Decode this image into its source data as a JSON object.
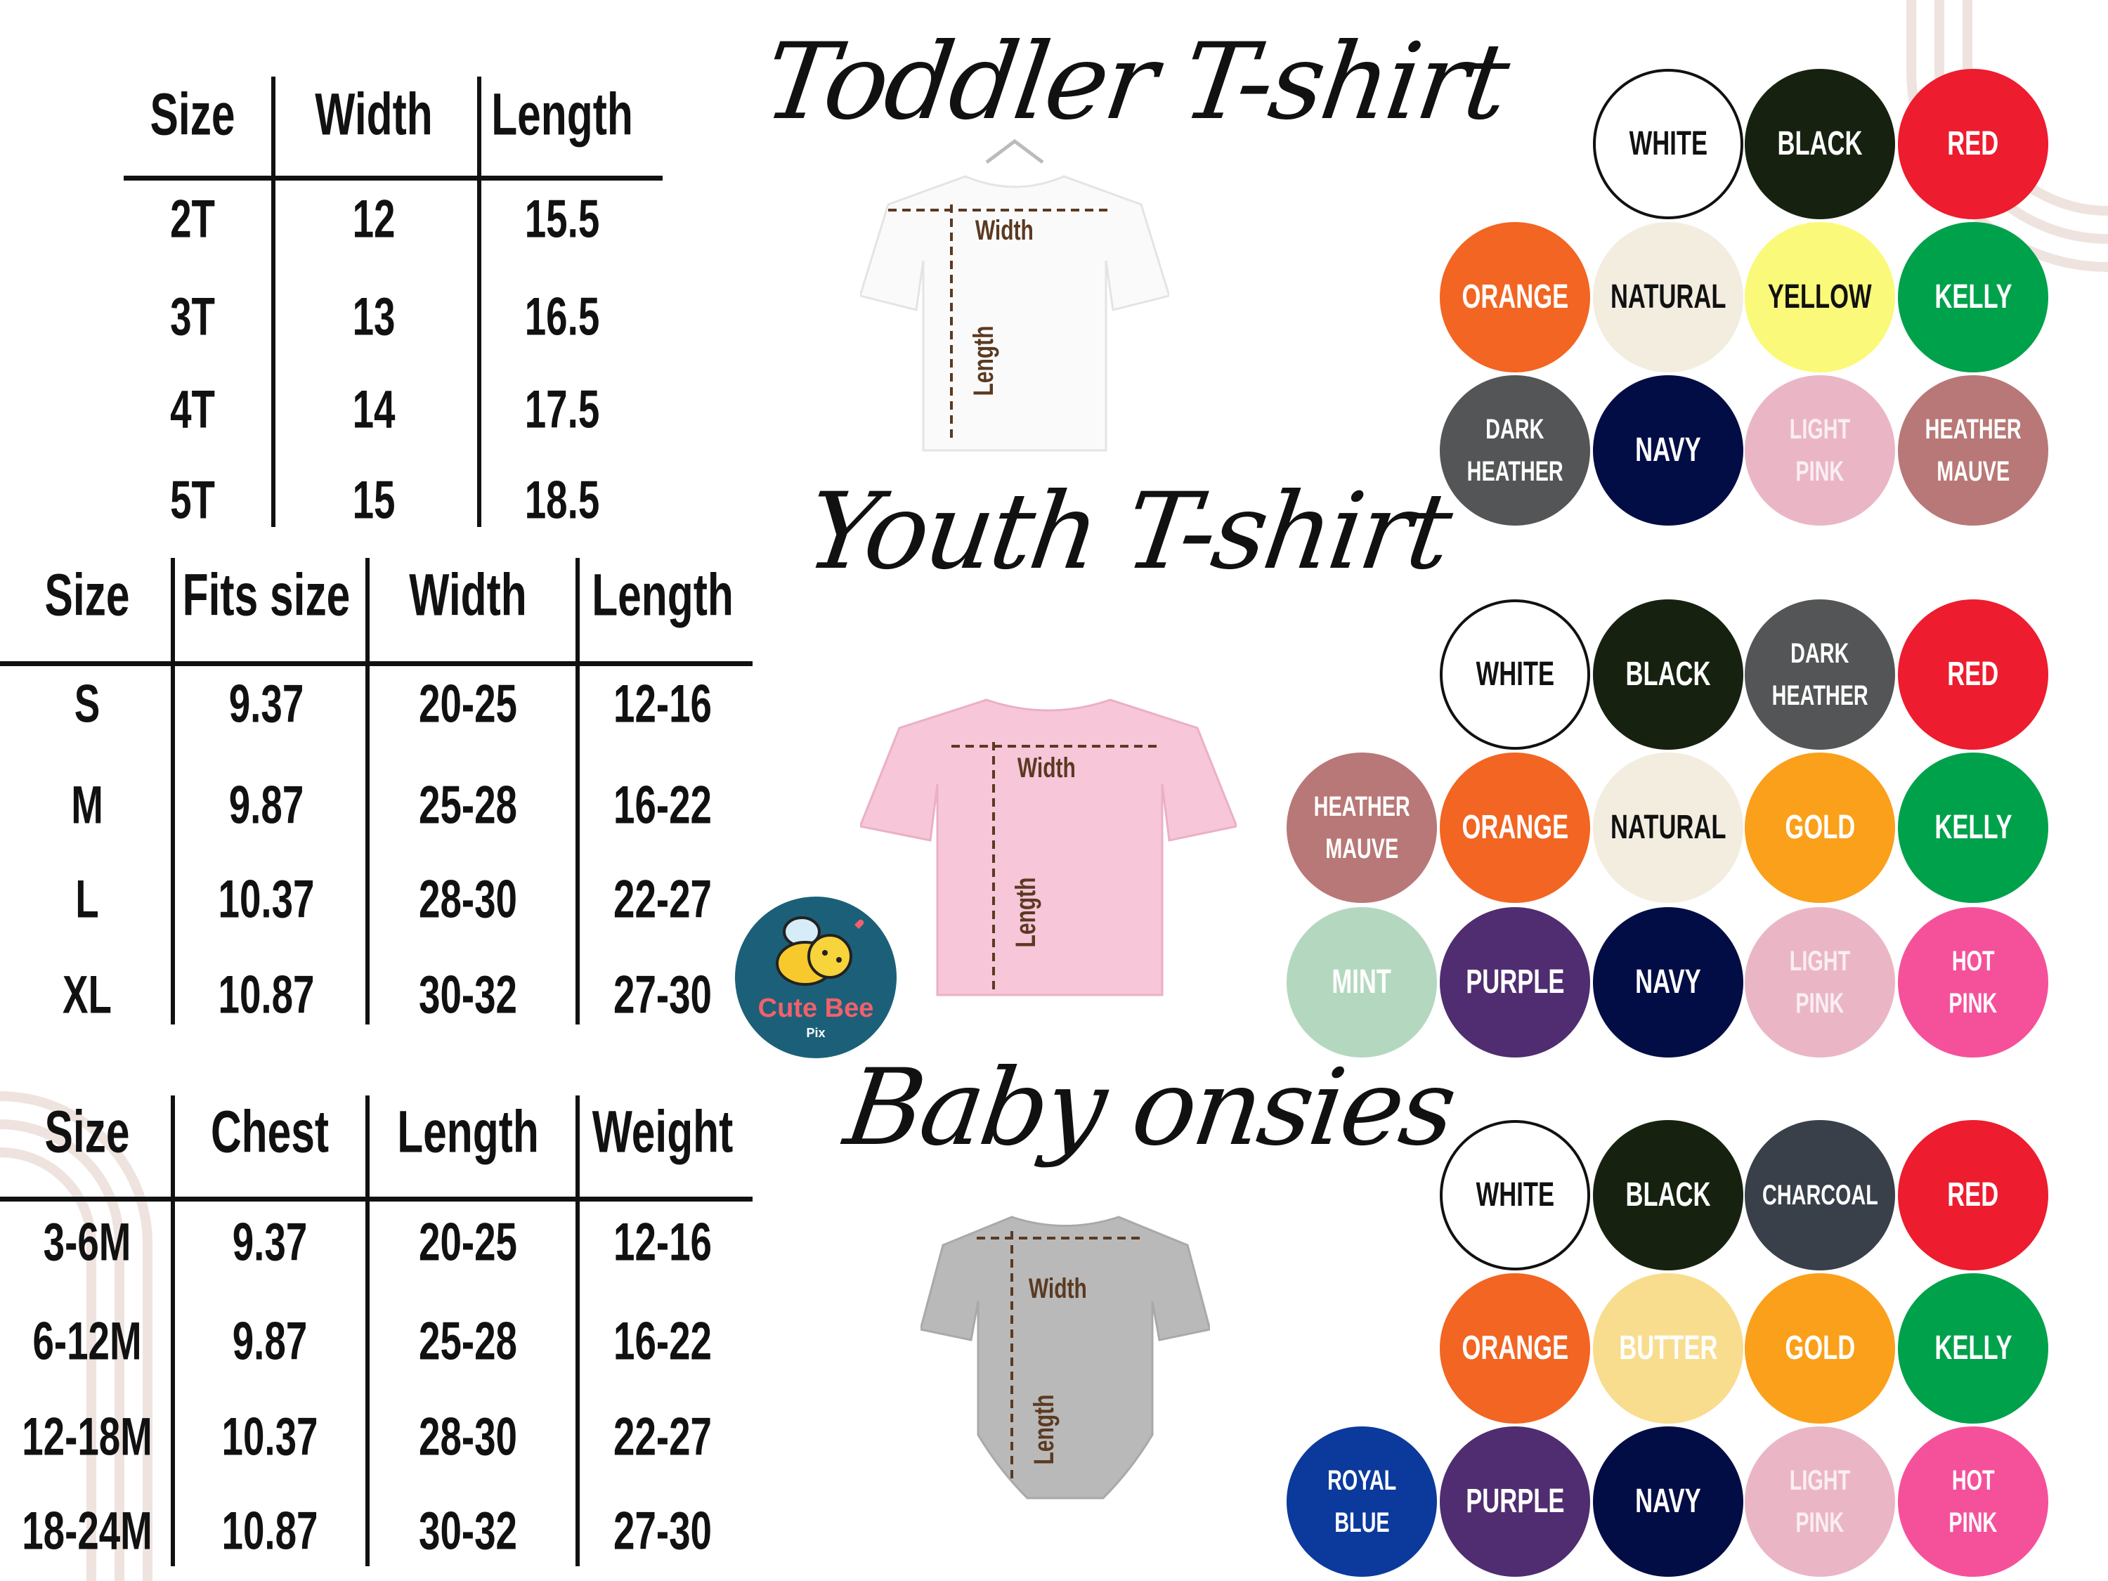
{
  "toddler": {
    "title": "Toddler T-shirt",
    "headers": [
      "Size",
      "Width",
      "Length"
    ],
    "rows": [
      [
        "2T",
        "12",
        "15.5"
      ],
      [
        "3T",
        "13",
        "16.5"
      ],
      [
        "4T",
        "14",
        "17.5"
      ],
      [
        "5T",
        "15",
        "18.5"
      ]
    ],
    "shirt_color": "#ffffff",
    "width_label": "Width",
    "length_label": "Length",
    "colors": [
      [
        {
          "name": [
            "WHITE"
          ],
          "bg": "#ffffff",
          "fg": "#111111"
        },
        {
          "name": [
            "BLACK"
          ],
          "bg": "#16220f",
          "fg": "#ffffff"
        },
        {
          "name": [
            "RED"
          ],
          "bg": "#ed1c2e",
          "fg": "#ffffff"
        }
      ],
      [
        {
          "name": [
            "ORANGE"
          ],
          "bg": "#f26522",
          "fg": "#ffffff"
        },
        {
          "name": [
            "NATURAL"
          ],
          "bg": "#f3ede0",
          "fg": "#111111"
        },
        {
          "name": [
            "YELLOW"
          ],
          "bg": "#fbf97a",
          "fg": "#111111"
        },
        {
          "name": [
            "KELLY"
          ],
          "bg": "#00a14b",
          "fg": "#ffffff"
        }
      ],
      [
        {
          "name": [
            "DARK",
            "HEATHER"
          ],
          "bg": "#545556",
          "fg": "#ffffff"
        },
        {
          "name": [
            "NAVY"
          ],
          "bg": "#030d45",
          "fg": "#ffffff"
        },
        {
          "name": [
            "LIGHT",
            "PINK"
          ],
          "bg": "#eab6c6",
          "fg": "#fbeef2"
        },
        {
          "name": [
            "HEATHER",
            "MAUVE"
          ],
          "bg": "#b87877",
          "fg": "#ffffff"
        }
      ]
    ]
  },
  "youth": {
    "title": "Youth T-shirt",
    "headers": [
      "Size",
      "Fits size",
      "Width",
      "Length"
    ],
    "rows": [
      [
        "S",
        "9.37",
        "20-25",
        "12-16"
      ],
      [
        "M",
        "9.87",
        "25-28",
        "16-22"
      ],
      [
        "L",
        "10.37",
        "28-30",
        "22-27"
      ],
      [
        "XL",
        "10.87",
        "30-32",
        "27-30"
      ]
    ],
    "shirt_color": "#f7c6d9",
    "width_label": "Width",
    "length_label": "Length",
    "colors": [
      [
        {
          "name": [
            "WHITE"
          ],
          "bg": "#ffffff",
          "fg": "#111111"
        },
        {
          "name": [
            "BLACK"
          ],
          "bg": "#16220f",
          "fg": "#ffffff"
        },
        {
          "name": [
            "DARK",
            "HEATHER"
          ],
          "bg": "#545556",
          "fg": "#ffffff"
        },
        {
          "name": [
            "RED"
          ],
          "bg": "#ed1c2e",
          "fg": "#ffffff"
        }
      ],
      [
        {
          "name": [
            "HEATHER",
            "MAUVE"
          ],
          "bg": "#b87877",
          "fg": "#ffffff"
        },
        {
          "name": [
            "ORANGE"
          ],
          "bg": "#f26522",
          "fg": "#ffffff"
        },
        {
          "name": [
            "NATURAL"
          ],
          "bg": "#f3ede0",
          "fg": "#111111"
        },
        {
          "name": [
            "GOLD"
          ],
          "bg": "#fba01a",
          "fg": "#ffffff"
        },
        {
          "name": [
            "KELLY"
          ],
          "bg": "#00a14b",
          "fg": "#ffffff"
        }
      ],
      [
        {
          "name": [
            "MINT"
          ],
          "bg": "#b3d8bf",
          "fg": "#ffffff"
        },
        {
          "name": [
            "PURPLE"
          ],
          "bg": "#4f2d70",
          "fg": "#ffffff"
        },
        {
          "name": [
            "NAVY"
          ],
          "bg": "#030d45",
          "fg": "#ffffff"
        },
        {
          "name": [
            "LIGHT",
            "PINK"
          ],
          "bg": "#eab6c6",
          "fg": "#fbeef2"
        },
        {
          "name": [
            "HOT",
            "PINK"
          ],
          "bg": "#f5519b",
          "fg": "#ffffff"
        }
      ]
    ]
  },
  "baby": {
    "title": "Baby onsies",
    "headers": [
      "Size",
      "Chest",
      "Length",
      "Weight"
    ],
    "rows": [
      [
        "3-6M",
        "9.37",
        "20-25",
        "12-16"
      ],
      [
        "6-12M",
        "9.87",
        "25-28",
        "16-22"
      ],
      [
        "12-18M",
        "10.37",
        "28-30",
        "22-27"
      ],
      [
        "18-24M",
        "10.87",
        "30-32",
        "27-30"
      ]
    ],
    "shirt_color": "#b9b9b9",
    "width_label": "Width",
    "length_label": "Length",
    "colors": [
      [
        {
          "name": [
            "WHITE"
          ],
          "bg": "#ffffff",
          "fg": "#111111"
        },
        {
          "name": [
            "BLACK"
          ],
          "bg": "#16220f",
          "fg": "#ffffff"
        },
        {
          "name": [
            "CHARCOAL"
          ],
          "bg": "#394049",
          "fg": "#ffffff"
        },
        {
          "name": [
            "RED"
          ],
          "bg": "#ed1c2e",
          "fg": "#ffffff"
        }
      ],
      [
        {
          "name": [
            "ORANGE"
          ],
          "bg": "#f26522",
          "fg": "#ffffff"
        },
        {
          "name": [
            "BUTTER"
          ],
          "bg": "#f9dd8e",
          "fg": "#ffffff"
        },
        {
          "name": [
            "GOLD"
          ],
          "bg": "#fba01a",
          "fg": "#ffffff"
        },
        {
          "name": [
            "KELLY"
          ],
          "bg": "#00a14b",
          "fg": "#ffffff"
        }
      ],
      [
        {
          "name": [
            "ROYAL",
            "BLUE"
          ],
          "bg": "#0b3a9c",
          "fg": "#ffffff"
        },
        {
          "name": [
            "PURPLE"
          ],
          "bg": "#4f2d70",
          "fg": "#ffffff"
        },
        {
          "name": [
            "NAVY"
          ],
          "bg": "#030d45",
          "fg": "#ffffff"
        },
        {
          "name": [
            "LIGHT",
            "PINK"
          ],
          "bg": "#eab6c6",
          "fg": "#fbeef2"
        },
        {
          "name": [
            "HOT",
            "PINK"
          ],
          "bg": "#f5519b",
          "fg": "#ffffff"
        }
      ]
    ]
  },
  "logo": {
    "name": "Cute Bee",
    "sub": "Pix",
    "bg": "#1b6078",
    "text_color": "#f2606b"
  }
}
